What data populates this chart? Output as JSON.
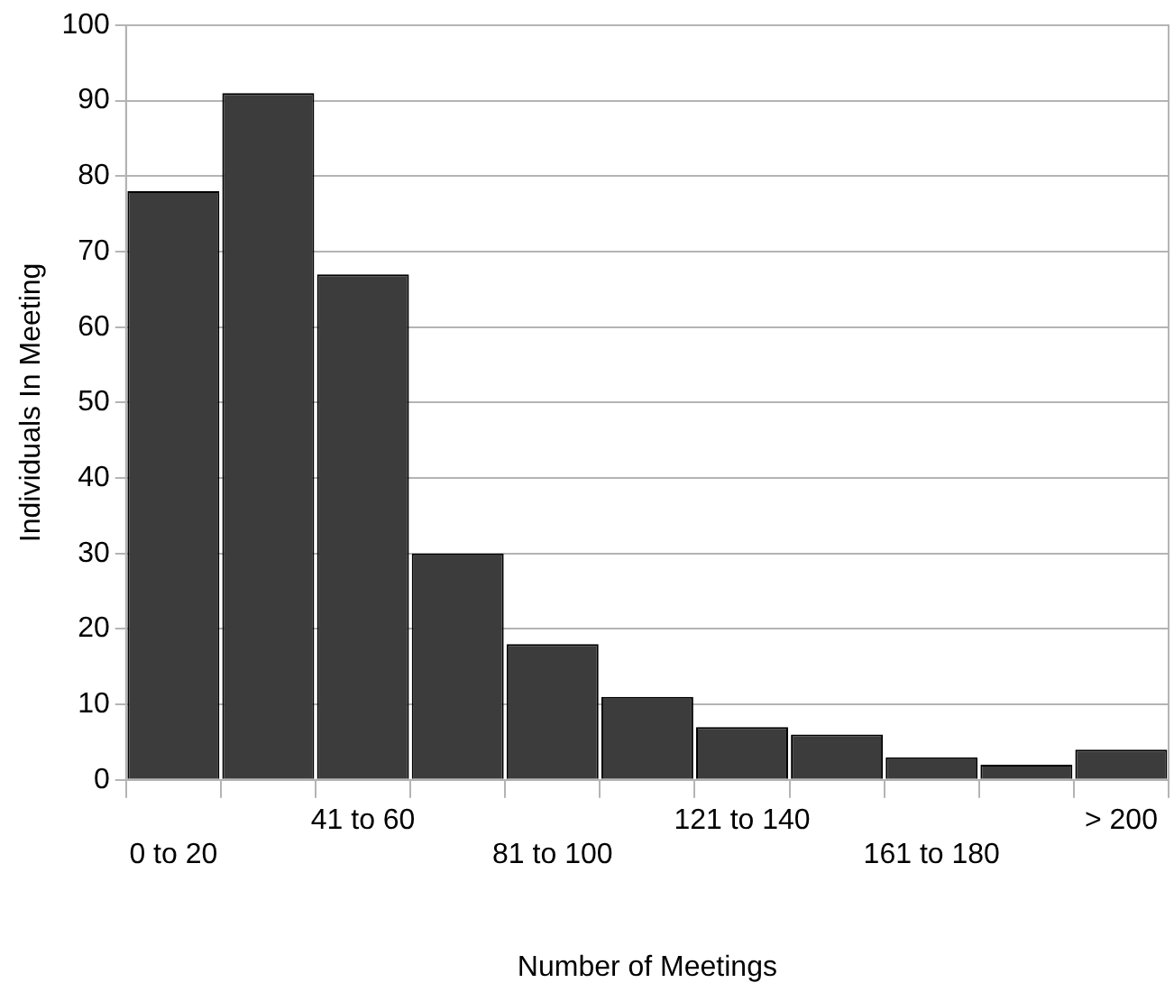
{
  "chart_data": {
    "type": "bar",
    "xlabel": "Number of Meetings",
    "ylabel": "Individuals In Meeting",
    "categories": [
      "0 to 20",
      null,
      "41 to 60",
      null,
      "81 to 100",
      null,
      "121 to 140",
      null,
      "161 to 180",
      null,
      "> 200"
    ],
    "values": [
      78,
      91,
      67,
      30,
      18,
      11,
      7,
      6,
      3,
      2,
      4
    ],
    "color": "#3c3c3c",
    "ylim": [
      0,
      100
    ],
    "yticks": [
      0,
      10,
      20,
      30,
      40,
      50,
      60,
      70,
      80,
      90,
      100
    ],
    "grid": "y",
    "legend": false
  }
}
